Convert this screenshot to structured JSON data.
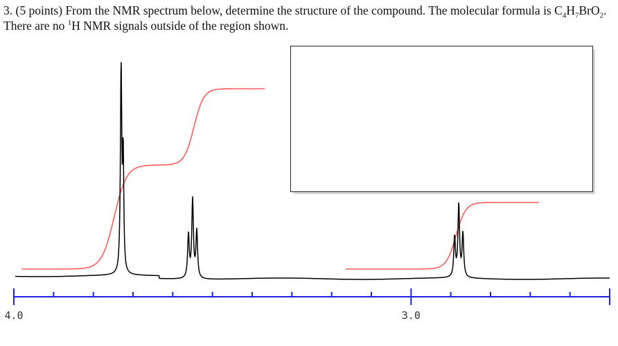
{
  "question": {
    "number": "3.",
    "points": "(5 points)",
    "text_a": "From the NMR spectrum below, determine the structure of the compound.  The molecular formula is",
    "formula_c": "C",
    "formula_c_count": "4",
    "formula_h": "H",
    "formula_h_count": "7",
    "formula_br": "BrO",
    "formula_o_count": "2",
    "text_b": ".  There are no",
    "nucleus_mass": "1",
    "text_c": "H NMR signals outside of the region shown."
  },
  "answer_box": {
    "content": ""
  },
  "chart_data": {
    "type": "line",
    "title": "",
    "xlabel": "",
    "ylabel": "",
    "x_axis": {
      "reversed": true,
      "xlim": [
        4.0,
        2.5
      ],
      "tick_labels": [
        "4.0",
        "3.0"
      ],
      "tick_label_values": [
        4.0,
        3.0
      ],
      "major_tick_values": [
        4.0,
        3.0,
        2.5
      ],
      "minor_tick_step": 0.1
    },
    "peaks": [
      {
        "shift_ppm": 3.73,
        "multiplicity": "singlet",
        "relative_height": 1.0
      },
      {
        "shift_ppm": 3.55,
        "multiplicity": "triplet",
        "relative_height": 0.38
      },
      {
        "shift_ppm": 2.88,
        "multiplicity": "triplet",
        "relative_height": 0.35
      }
    ],
    "integrals": [
      {
        "range_ppm": [
          3.98,
          3.52
        ],
        "color": "#ff5c5c"
      },
      {
        "range_ppm": [
          3.15,
          2.75
        ],
        "color": "#ff5c5c"
      }
    ],
    "colors": {
      "spectrum": "#000000",
      "integral": "#ff5c5c",
      "axis": "#2020e0"
    },
    "grid": false
  }
}
